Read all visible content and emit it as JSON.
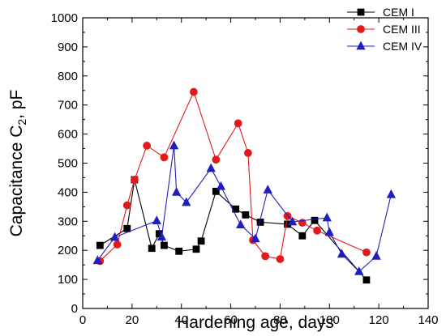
{
  "chart_data": {
    "type": "line",
    "title": "",
    "xlabel": "Hardening age, days",
    "ylabel_main": "Capacitance C",
    "ylabel_sub": "2",
    "ylabel_tail": ", pF",
    "xlim": [
      0,
      140
    ],
    "ylim": [
      0,
      1000
    ],
    "xticks": [
      "0",
      "20",
      "40",
      "60",
      "80",
      "100",
      "120",
      "140"
    ],
    "yticks": [
      "0",
      "100",
      "200",
      "300",
      "400",
      "500",
      "600",
      "700",
      "800",
      "900",
      "1000"
    ],
    "grid": false,
    "legend_position": "top-right",
    "series": [
      {
        "name": "CEM I",
        "color": "#000000",
        "marker": "square",
        "x": [
          7,
          18,
          21,
          28,
          31,
          33,
          39,
          46,
          48,
          54,
          62,
          66,
          72,
          83,
          89,
          94,
          115
        ],
        "y": [
          217,
          275,
          443,
          207,
          257,
          217,
          197,
          204,
          232,
          403,
          342,
          322,
          297,
          290,
          250,
          303,
          98
        ]
      },
      {
        "name": "CEM III",
        "color": "#e31a1c",
        "marker": "circle",
        "x": [
          7,
          14,
          18,
          21,
          26,
          33,
          45,
          54,
          63,
          67,
          69,
          74,
          80,
          83,
          89,
          95,
          115
        ],
        "y": [
          163,
          220,
          355,
          443,
          560,
          520,
          745,
          512,
          637,
          535,
          235,
          180,
          170,
          318,
          295,
          268,
          193
        ]
      },
      {
        "name": "CEM IV",
        "color": "#1f1fbf",
        "marker": "triangle",
        "x": [
          6,
          13,
          30,
          32,
          37,
          38,
          42,
          52,
          56,
          64,
          70,
          75,
          85,
          99,
          100,
          105,
          112,
          119,
          125
        ],
        "y": [
          165,
          245,
          302,
          246,
          560,
          400,
          365,
          482,
          420,
          288,
          240,
          408,
          298,
          312,
          262,
          187,
          127,
          180,
          392
        ]
      }
    ]
  }
}
